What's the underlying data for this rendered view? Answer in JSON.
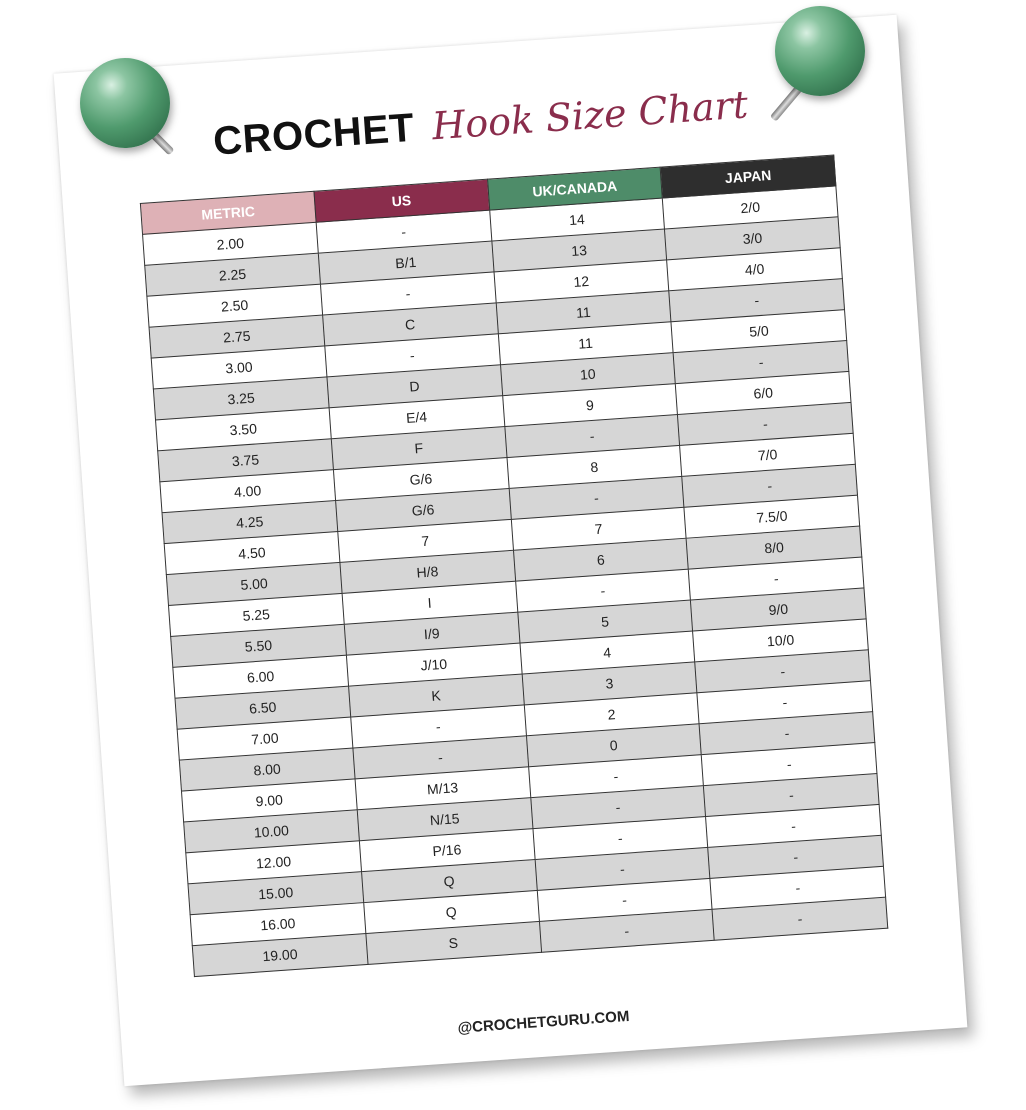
{
  "title": {
    "main": "CROCHET",
    "script": "Hook Size Chart"
  },
  "columns": [
    {
      "label": "METRIC",
      "color": "#deb1b6"
    },
    {
      "label": "US",
      "color": "#8a2d4c"
    },
    {
      "label": "UK/CANADA",
      "color": "#4e8c69"
    },
    {
      "label": "JAPAN",
      "color": "#2e2e2e"
    }
  ],
  "rows": [
    [
      "2.00",
      "-",
      "14",
      "2/0"
    ],
    [
      "2.25",
      "B/1",
      "13",
      "3/0"
    ],
    [
      "2.50",
      "-",
      "12",
      "4/0"
    ],
    [
      "2.75",
      "C",
      "11",
      "-"
    ],
    [
      "3.00",
      "-",
      "11",
      "5/0"
    ],
    [
      "3.25",
      "D",
      "10",
      "-"
    ],
    [
      "3.50",
      "E/4",
      "9",
      "6/0"
    ],
    [
      "3.75",
      "F",
      "-",
      "-"
    ],
    [
      "4.00",
      "G/6",
      "8",
      "7/0"
    ],
    [
      "4.25",
      "G/6",
      "-",
      "-"
    ],
    [
      "4.50",
      "7",
      "7",
      "7.5/0"
    ],
    [
      "5.00",
      "H/8",
      "6",
      "8/0"
    ],
    [
      "5.25",
      "I",
      "-",
      "-"
    ],
    [
      "5.50",
      "I/9",
      "5",
      "9/0"
    ],
    [
      "6.00",
      "J/10",
      "4",
      "10/0"
    ],
    [
      "6.50",
      "K",
      "3",
      "-"
    ],
    [
      "7.00",
      "-",
      "2",
      "-"
    ],
    [
      "8.00",
      "-",
      "0",
      "-"
    ],
    [
      "9.00",
      "M/13",
      "-",
      "-"
    ],
    [
      "10.00",
      "N/15",
      "-",
      "-"
    ],
    [
      "12.00",
      "P/16",
      "-",
      "-"
    ],
    [
      "15.00",
      "Q",
      "-",
      "-"
    ],
    [
      "16.00",
      "Q",
      "-",
      "-"
    ],
    [
      "19.00",
      "S",
      "-",
      "-"
    ]
  ],
  "footer": "@CROCHETGURU.COM",
  "pins": [
    "green-pushpin",
    "green-pushpin"
  ]
}
